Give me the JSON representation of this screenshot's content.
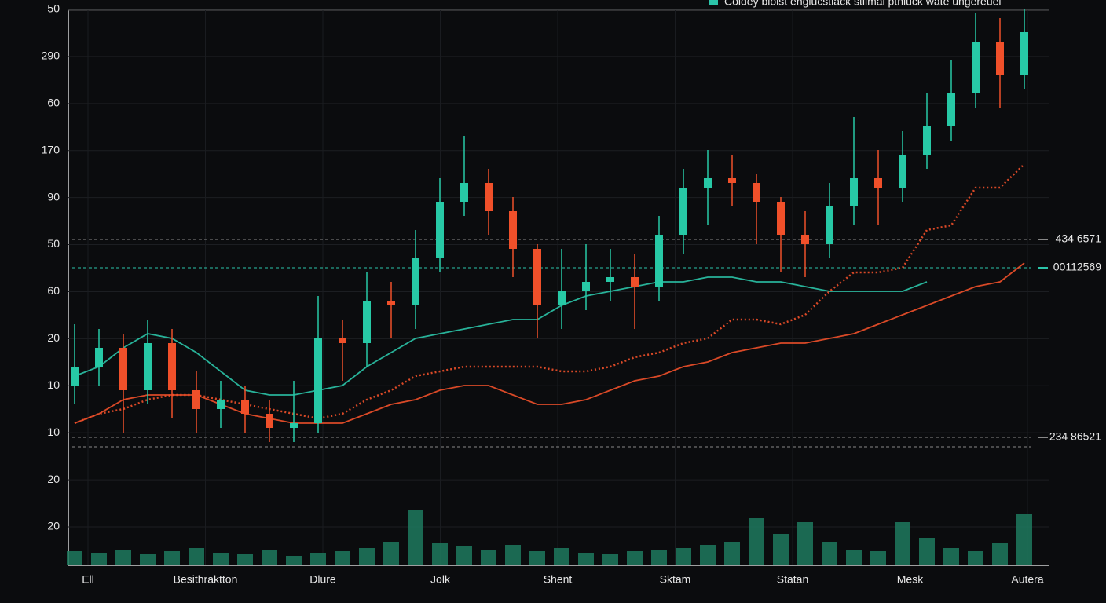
{
  "chart_data": {
    "type": "candlestick",
    "legend": "Coldey bioist engiucstiack stilmal pthluck wate ungereuel",
    "y_labels": [
      "50",
      "290",
      "60",
      "170",
      "90",
      "50",
      "60",
      "20",
      "10",
      "10",
      "20",
      "20"
    ],
    "x_labels": [
      "Ell",
      "Besithraktton",
      "Dlure",
      "Jolk",
      "Shent",
      "Sktam",
      "Statan",
      "Mesk",
      "Autera"
    ],
    "ylim": [
      -0.8,
      11.2
    ],
    "grid": true,
    "up_color": "#27c9a6",
    "down_color": "#f0502a",
    "open": [
      3.0,
      3.4,
      3.8,
      2.9,
      3.9,
      2.9,
      2.5,
      2.7,
      2.4,
      2.1,
      2.2,
      4.0,
      3.9,
      4.8,
      4.7,
      5.7,
      6.9,
      7.3,
      6.7,
      5.9,
      4.7,
      5.0,
      5.2,
      5.3,
      5.1,
      6.2,
      7.2,
      7.4,
      7.3,
      6.9,
      6.2,
      6.0,
      6.8,
      7.4,
      7.2,
      7.9,
      8.5,
      9.2,
      10.3,
      9.6
    ],
    "high": [
      4.3,
      4.2,
      4.1,
      4.4,
      4.2,
      3.3,
      3.1,
      3.0,
      2.7,
      3.1,
      4.9,
      4.4,
      5.4,
      5.2,
      6.3,
      7.4,
      8.3,
      7.6,
      7.0,
      6.0,
      5.9,
      6.0,
      5.9,
      5.8,
      6.6,
      7.6,
      8.0,
      7.9,
      7.5,
      7.0,
      6.7,
      7.3,
      8.7,
      8.0,
      8.4,
      9.2,
      9.9,
      10.9,
      10.8,
      11.0
    ],
    "low": [
      2.6,
      3.0,
      2.0,
      2.6,
      2.3,
      2.0,
      2.1,
      2.0,
      1.8,
      1.8,
      2.0,
      3.1,
      3.4,
      4.0,
      4.2,
      5.4,
      6.6,
      6.2,
      5.3,
      4.0,
      4.2,
      4.6,
      4.8,
      4.2,
      4.8,
      5.8,
      6.4,
      6.8,
      6.0,
      5.4,
      5.3,
      5.7,
      6.4,
      6.4,
      6.9,
      7.6,
      8.2,
      8.9,
      8.9,
      9.3
    ],
    "close": [
      3.4,
      3.8,
      2.9,
      3.9,
      2.9,
      2.5,
      2.7,
      2.4,
      2.1,
      2.2,
      4.0,
      3.9,
      4.8,
      4.7,
      5.7,
      6.9,
      7.3,
      6.7,
      5.9,
      4.7,
      5.0,
      5.2,
      5.3,
      5.1,
      6.2,
      7.2,
      7.4,
      7.3,
      6.9,
      6.2,
      6.0,
      6.8,
      7.4,
      7.2,
      7.9,
      8.5,
      9.2,
      10.3,
      9.6,
      10.5
    ],
    "series": [
      {
        "color": "#2bc4a9",
        "style": "solid",
        "values": [
          3.2,
          3.4,
          3.8,
          4.1,
          4.0,
          3.7,
          3.3,
          2.9,
          2.8,
          2.8,
          2.9,
          3.0,
          3.4,
          3.7,
          4.0,
          4.1,
          4.2,
          4.3,
          4.4,
          4.4,
          4.7,
          4.9,
          5.0,
          5.1,
          5.2,
          5.2,
          5.3,
          5.3,
          5.2,
          5.2,
          5.1,
          5.0,
          5.0,
          5.0,
          5.0,
          5.2,
          null,
          null,
          null,
          null
        ]
      },
      {
        "color": "#f0502a",
        "style": "solid",
        "values": [
          2.2,
          2.4,
          2.7,
          2.8,
          2.8,
          2.8,
          2.6,
          2.4,
          2.3,
          2.2,
          2.2,
          2.2,
          2.4,
          2.6,
          2.7,
          2.9,
          3.0,
          3.0,
          2.8,
          2.6,
          2.6,
          2.7,
          2.9,
          3.1,
          3.2,
          3.4,
          3.5,
          3.7,
          3.8,
          3.9,
          3.9,
          4.0,
          4.1,
          4.3,
          4.5,
          4.7,
          4.9,
          5.1,
          5.2,
          5.6
        ]
      },
      {
        "color": "#f0502a",
        "style": "dotted",
        "values": [
          2.2,
          2.4,
          2.5,
          2.7,
          2.8,
          2.8,
          2.7,
          2.6,
          2.5,
          2.4,
          2.3,
          2.4,
          2.7,
          2.9,
          3.2,
          3.3,
          3.4,
          3.4,
          3.4,
          3.4,
          3.3,
          3.3,
          3.4,
          3.6,
          3.7,
          3.9,
          4.0,
          4.4,
          4.4,
          4.3,
          4.5,
          5.0,
          5.4,
          5.4,
          5.5,
          6.3,
          6.4,
          7.2,
          7.2,
          7.7
        ]
      }
    ],
    "volume": [
      18,
      16,
      20,
      14,
      18,
      22,
      16,
      14,
      20,
      12,
      16,
      18,
      22,
      30,
      70,
      28,
      24,
      20,
      26,
      18,
      22,
      16,
      14,
      18,
      20,
      22,
      26,
      30,
      60,
      40,
      55,
      30,
      20,
      18,
      55,
      35,
      22,
      18,
      28,
      65
    ],
    "vlim": [
      0,
      80
    ],
    "levels": [
      {
        "value": 6.1,
        "label": "434 6571",
        "color": "#888"
      },
      {
        "value": 5.5,
        "label": "00112569",
        "color": "#2bc4a9"
      },
      {
        "value": 1.9,
        "label": "234 86521",
        "color": "#888"
      },
      {
        "value": 1.7,
        "color": "#888"
      }
    ]
  }
}
